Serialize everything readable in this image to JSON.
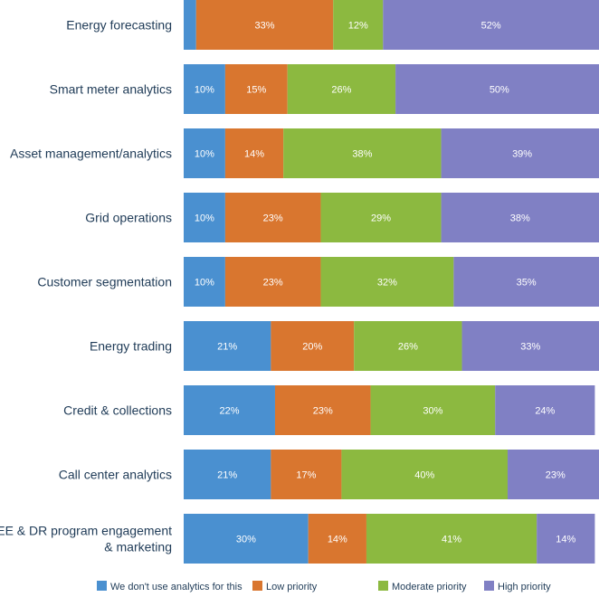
{
  "chart_data": {
    "type": "bar",
    "orientation": "horizontal",
    "stacked": true,
    "categories": [
      "Energy forecasting",
      "Smart meter analytics",
      "Asset management/analytics",
      "Grid operations",
      "Customer segmentation",
      "Energy trading",
      "Credit & collections",
      "Call center analytics",
      "EE & DR program engagement & marketing"
    ],
    "category_lines": [
      [
        "Energy forecasting"
      ],
      [
        "Smart meter analytics"
      ],
      [
        "Asset management/analytics"
      ],
      [
        "Grid operations"
      ],
      [
        "Customer segmentation"
      ],
      [
        "Energy trading"
      ],
      [
        "Credit & collections"
      ],
      [
        "Call center analytics"
      ],
      [
        "EE & DR program engagement",
        "& marketing"
      ]
    ],
    "series": [
      {
        "name": "We don't use analytics for this",
        "color": "#4a90d0",
        "values": [
          3,
          10,
          10,
          10,
          10,
          21,
          22,
          21,
          30
        ],
        "labels": [
          "",
          "10%",
          "10%",
          "10%",
          "10%",
          "21%",
          "22%",
          "21%",
          "30%"
        ]
      },
      {
        "name": "Low priority",
        "color": "#d9762f",
        "values": [
          33,
          15,
          14,
          23,
          23,
          20,
          23,
          17,
          14
        ],
        "labels": [
          "33%",
          "15%",
          "14%",
          "23%",
          "23%",
          "20%",
          "23%",
          "17%",
          "14%"
        ]
      },
      {
        "name": "Moderate priority",
        "color": "#8cb940",
        "values": [
          12,
          26,
          38,
          29,
          32,
          26,
          30,
          40,
          41
        ],
        "labels": [
          "12%",
          "26%",
          "38%",
          "29%",
          "32%",
          "26%",
          "30%",
          "40%",
          "41%"
        ]
      },
      {
        "name": "High priority",
        "color": "#8080c4",
        "values": [
          52,
          50,
          39,
          38,
          35,
          33,
          24,
          23,
          14
        ],
        "labels": [
          "52%",
          "50%",
          "39%",
          "38%",
          "35%",
          "33%",
          "24%",
          "23%",
          "14%"
        ]
      }
    ],
    "legend": {
      "position": "bottom"
    },
    "grid": false,
    "xlim": [
      0,
      100
    ]
  }
}
